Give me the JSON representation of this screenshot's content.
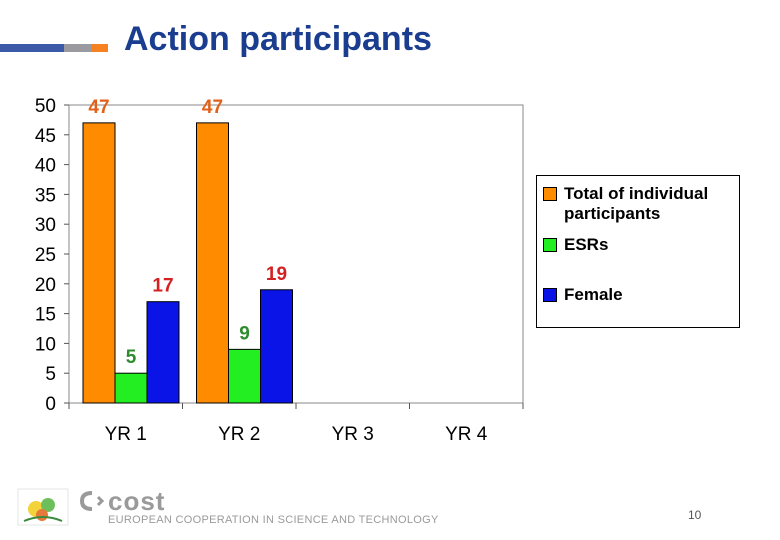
{
  "page": {
    "number": "10"
  },
  "colors": {
    "title": "#1a3d8f",
    "total": "#ff8c00",
    "esrs": "#22ee22",
    "female": "#0a14e6",
    "label_total": "#e0621a",
    "label_esrs": "#2e8b2e",
    "label_female": "#d42020",
    "bar_blue": "#3b5aa8",
    "bar_gray": "#9a9aa0",
    "bar_orange": "#f5821f"
  },
  "footer": {
    "brand": "cost",
    "tagline": "EUROPEAN COOPERATION IN SCIENCE AND TECHNOLOGY"
  },
  "chart_data": {
    "type": "bar",
    "title": "Action participants",
    "categories": [
      "YR 1",
      "YR 2",
      "YR 3",
      "YR 4"
    ],
    "series": [
      {
        "name": "Total of individual participants",
        "values": [
          47,
          47,
          null,
          null
        ]
      },
      {
        "name": "ESRs",
        "values": [
          5,
          9,
          null,
          null
        ]
      },
      {
        "name": "Female",
        "values": [
          17,
          19,
          null,
          null
        ]
      }
    ],
    "ylim": [
      0,
      50
    ],
    "yticks": [
      0,
      5,
      10,
      15,
      20,
      25,
      30,
      35,
      40,
      45,
      50
    ],
    "xlabel": "",
    "ylabel": "",
    "legend_position": "right"
  }
}
